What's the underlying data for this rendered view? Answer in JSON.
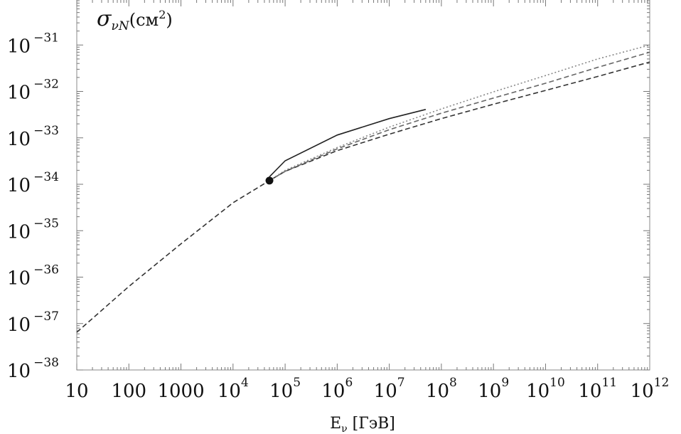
{
  "chart_data": {
    "type": "line",
    "title": "σ_νN(см²)",
    "title_parts": {
      "symbol": "σ",
      "subscript": "νN",
      "open": "(см",
      "power": "2",
      "close": ")"
    },
    "xlabel": "E_ν [ГэВ]",
    "xlabel_parts": {
      "main": "E",
      "sub": "ν",
      "unit": " [ГэВ]"
    },
    "ylabel": "",
    "x_scale": "log",
    "y_scale": "log",
    "xlim": [
      10,
      1000000000000.0
    ],
    "ylim": [
      1e-38,
      1e-30
    ],
    "grid": false,
    "x_ticks": [
      {
        "value": 10,
        "base": "10",
        "exp": ""
      },
      {
        "value": 100,
        "base": "100",
        "exp": ""
      },
      {
        "value": 1000,
        "base": "1000",
        "exp": ""
      },
      {
        "value": 10000.0,
        "base": "10",
        "exp": "4"
      },
      {
        "value": 100000.0,
        "base": "10",
        "exp": "5"
      },
      {
        "value": 1000000.0,
        "base": "10",
        "exp": "6"
      },
      {
        "value": 10000000.0,
        "base": "10",
        "exp": "7"
      },
      {
        "value": 100000000.0,
        "base": "10",
        "exp": "8"
      },
      {
        "value": 1000000000.0,
        "base": "10",
        "exp": "9"
      },
      {
        "value": 10000000000.0,
        "base": "10",
        "exp": "10"
      },
      {
        "value": 100000000000.0,
        "base": "10",
        "exp": "11"
      },
      {
        "value": 1000000000000.0,
        "base": "10",
        "exp": "12"
      }
    ],
    "y_ticks": [
      {
        "value": 1e-31,
        "base": "10",
        "exp": "−31"
      },
      {
        "value": 1e-32,
        "base": "10",
        "exp": "−32"
      },
      {
        "value": 1e-33,
        "base": "10",
        "exp": "−33"
      },
      {
        "value": 1e-34,
        "base": "10",
        "exp": "−34"
      },
      {
        "value": 1e-35,
        "base": "10",
        "exp": "−35"
      },
      {
        "value": 1e-36,
        "base": "10",
        "exp": "−36"
      },
      {
        "value": 1e-37,
        "base": "10",
        "exp": "−37"
      },
      {
        "value": 1e-38,
        "base": "10",
        "exp": "−38"
      }
    ],
    "series": [
      {
        "style": "dashed",
        "color": "#333333",
        "x": [
          10,
          100,
          1000,
          10000.0,
          50000.0,
          100000.0,
          1000000.0,
          10000000.0,
          100000000.0,
          1000000000.0,
          10000000000.0,
          100000000000.0,
          1000000000000.0
        ],
        "y": [
          6.5e-38,
          6.3e-37,
          5.2e-36,
          4e-35,
          1.2e-34,
          1.9e-34,
          5.3e-34,
          1.2e-33,
          2.6e-33,
          5.3e-33,
          1.05e-32,
          2.1e-32,
          4.3e-32
        ]
      },
      {
        "style": "dashed",
        "color": "#666666",
        "x": [
          50000.0,
          100000.0,
          1000000.0,
          10000000.0,
          100000000.0,
          1000000000.0,
          10000000000.0,
          100000000000.0,
          1000000000000.0
        ],
        "y": [
          1.2e-34,
          1.9e-34,
          5.8e-34,
          1.5e-33,
          3.4e-33,
          7.2e-33,
          1.5e-32,
          3.3e-32,
          7e-32
        ]
      },
      {
        "style": "dotted",
        "color": "#888888",
        "x": [
          50000.0,
          100000.0,
          1000000.0,
          10000000.0,
          100000000.0,
          1000000000.0,
          10000000000.0,
          100000000000.0,
          1000000000000.0
        ],
        "y": [
          1.2e-34,
          2e-34,
          6.2e-34,
          1.7e-33,
          4.2e-33,
          9.8e-33,
          2.2e-32,
          5e-32,
          1e-31
        ]
      },
      {
        "style": "solid",
        "color": "#222222",
        "x": [
          50000.0,
          100000.0,
          1000000.0,
          10000000.0,
          50000000.0
        ],
        "y": [
          1.45e-34,
          3.2e-34,
          1.15e-33,
          2.6e-33,
          4.1e-33
        ]
      }
    ],
    "markers": [
      {
        "x": 50000.0,
        "y": 1.2e-34,
        "shape": "filled-circle"
      }
    ]
  }
}
